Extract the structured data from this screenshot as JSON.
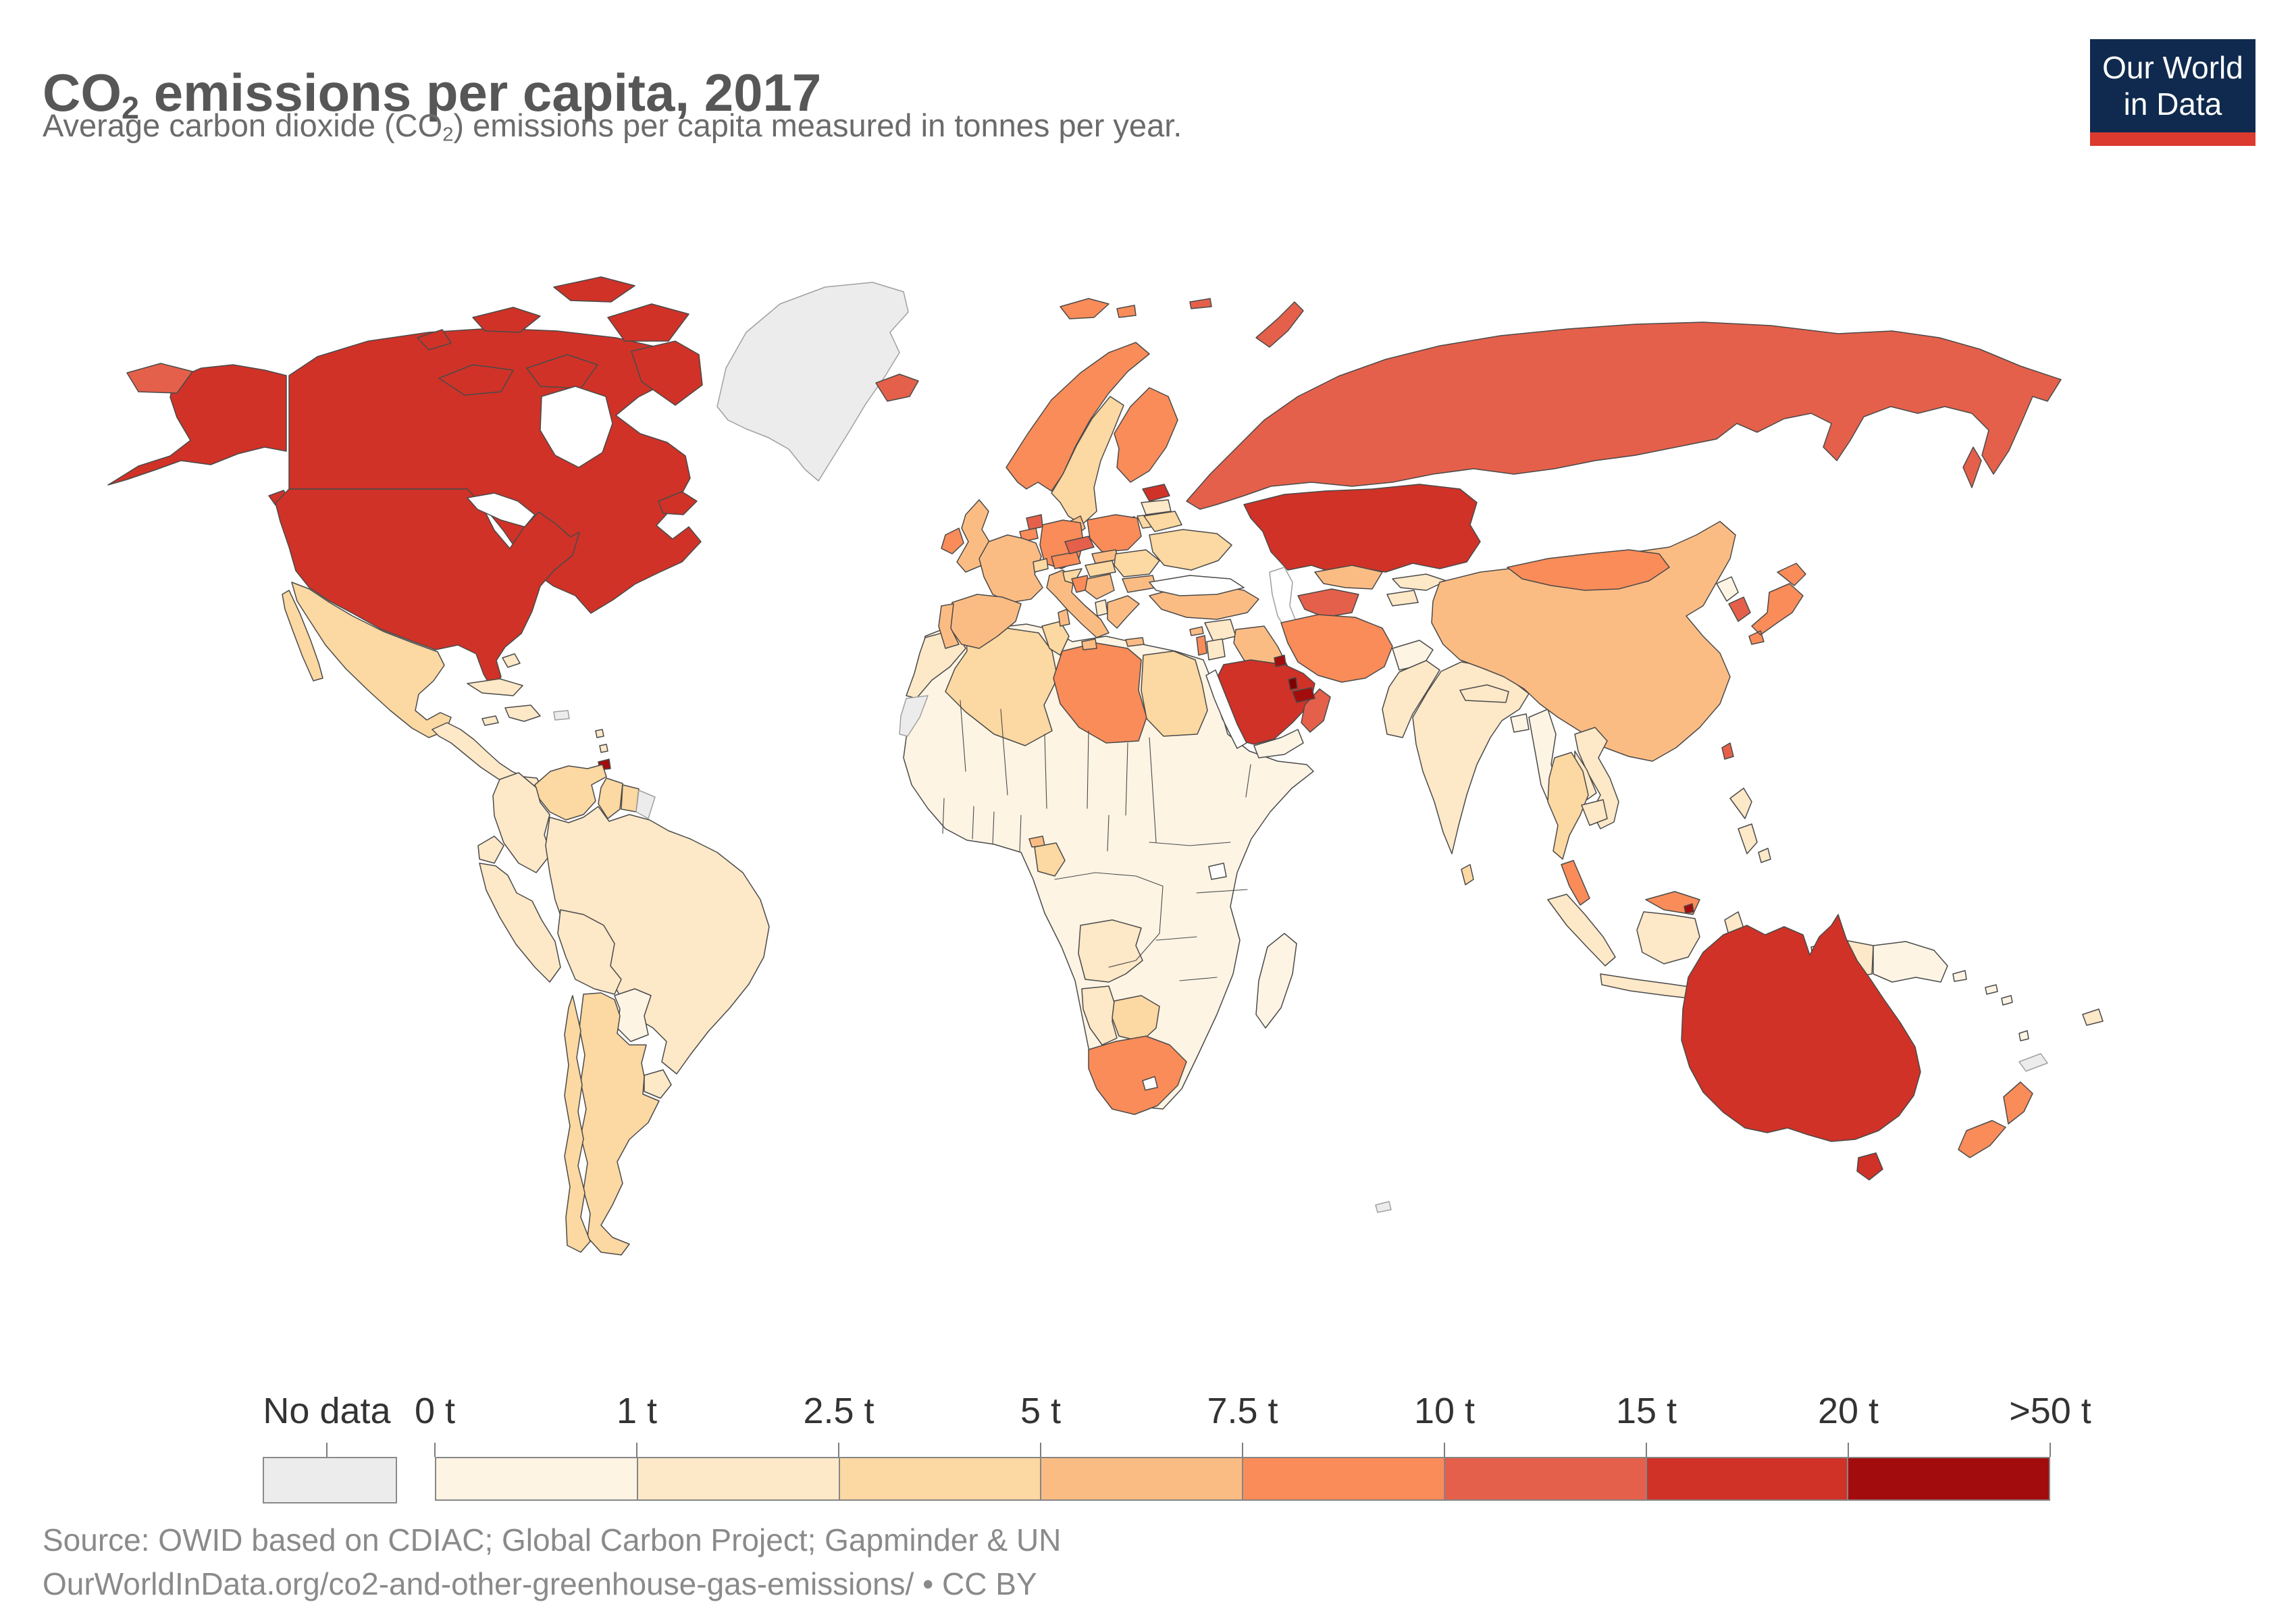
{
  "header": {
    "title_prefix": "CO",
    "title_sub": "2",
    "title_suffix": " emissions per capita, 2017",
    "subtitle_prefix": "Average carbon dioxide (CO",
    "subtitle_sub": "2",
    "subtitle_suffix": ") emissions per capita measured in tonnes per year."
  },
  "logo": {
    "line1": "Our World",
    "line2": "in Data",
    "bg_color": "#0f2a4e",
    "bar_color": "#dc3a2e"
  },
  "legend": {
    "no_data_label": "No data",
    "no_data_color": "#ececec",
    "tick_labels": [
      "0 t",
      "1 t",
      "2.5 t",
      "5 t",
      "7.5 t",
      "10 t",
      "15 t",
      "20 t",
      ">50 t"
    ],
    "bin_colors": [
      "#fdf4e4",
      "#fde8c8",
      "#fcd8a2",
      "#fbbc84",
      "#f98c59",
      "#e5604a",
      "#d03227",
      "#a30c0c"
    ],
    "overflow_color": "#7f0000"
  },
  "footer": {
    "source": "Source: OWID based on CDIAC; Global Carbon Project; Gapminder & UN",
    "link": "OurWorldInData.org/co2-and-other-greenhouse-gas-emissions/ • CC BY"
  },
  "chart_data": {
    "type": "heatmap",
    "subtype": "choropleth-world-map",
    "title": "CO2 emissions per capita, 2017",
    "unit": "tonnes CO2 per capita per year",
    "legend_position": "bottom",
    "bins": [
      "0-1 t",
      "1-2.5 t",
      "2.5-5 t",
      "5-7.5 t",
      "7.5-10 t",
      "10-15 t",
      "15-20 t",
      "20-50 t",
      ">50 t"
    ],
    "regions": {
      "canada": {
        "label": "Canada",
        "bin": 6
      },
      "usa": {
        "label": "United States",
        "bin": 6
      },
      "greenland": {
        "label": "Greenland",
        "bin": "nodata"
      },
      "mexico": {
        "label": "Mexico",
        "bin": 2
      },
      "central-america": {
        "label": "Central America",
        "bin": 1
      },
      "cuba": {
        "label": "Cuba",
        "bin": 1
      },
      "jamaica": {
        "label": "Jamaica",
        "bin": 1
      },
      "hispaniola": {
        "label": "Hispaniola",
        "bin": 1
      },
      "puerto-rico": {
        "label": "Puerto Rico",
        "bin": "nodata"
      },
      "bahamas": {
        "label": "Bahamas",
        "bin": 1
      },
      "lesser-antilles": {
        "label": "Lesser Antilles",
        "bin": 1
      },
      "trinidad": {
        "label": "Trinidad and Tobago",
        "bin": 7
      },
      "venezuela": {
        "label": "Venezuela",
        "bin": 2
      },
      "colombia": {
        "label": "Colombia",
        "bin": 1
      },
      "guyana": {
        "label": "Guyana",
        "bin": 2
      },
      "suriname": {
        "label": "Suriname",
        "bin": 2
      },
      "french-guiana": {
        "label": "French Guiana",
        "bin": "nodata"
      },
      "ecuador": {
        "label": "Ecuador",
        "bin": 1
      },
      "peru": {
        "label": "Peru",
        "bin": 1
      },
      "brazil": {
        "label": "Brazil",
        "bin": 1
      },
      "bolivia": {
        "label": "Bolivia",
        "bin": 1
      },
      "paraguay": {
        "label": "Paraguay",
        "bin": 0
      },
      "uruguay": {
        "label": "Uruguay",
        "bin": 1
      },
      "argentina": {
        "label": "Argentina",
        "bin": 2
      },
      "chile": {
        "label": "Chile",
        "bin": 2
      },
      "iceland": {
        "label": "Iceland",
        "bin": 5
      },
      "uk": {
        "label": "United Kingdom",
        "bin": 3
      },
      "ireland": {
        "label": "Ireland",
        "bin": 4
      },
      "norway": {
        "label": "Norway",
        "bin": 4
      },
      "sweden": {
        "label": "Sweden",
        "bin": 2
      },
      "finland": {
        "label": "Finland",
        "bin": 4
      },
      "denmark": {
        "label": "Denmark",
        "bin": 3
      },
      "estonia": {
        "label": "Estonia",
        "bin": 6
      },
      "latvia": {
        "label": "Latvia",
        "bin": 1
      },
      "lithuania": {
        "label": "Lithuania",
        "bin": 2
      },
      "germany": {
        "label": "Germany",
        "bin": 4
      },
      "netherlands": {
        "label": "Netherlands",
        "bin": 5
      },
      "belgium": {
        "label": "Belgium",
        "bin": 4
      },
      "france": {
        "label": "France",
        "bin": 3
      },
      "spain": {
        "label": "Spain",
        "bin": 3
      },
      "portugal": {
        "label": "Portugal",
        "bin": 3
      },
      "italy": {
        "label": "Italy",
        "bin": 3
      },
      "switzerland": {
        "label": "Switzerland",
        "bin": 2
      },
      "austria": {
        "label": "Austria",
        "bin": 4
      },
      "czechia": {
        "label": "Czechia",
        "bin": 5
      },
      "poland": {
        "label": "Poland",
        "bin": 4
      },
      "slovakia": {
        "label": "Slovakia",
        "bin": 3
      },
      "hungary": {
        "label": "Hungary",
        "bin": 2
      },
      "croatia": {
        "label": "Croatia",
        "bin": 2
      },
      "bosnia": {
        "label": "Bosnia and Herzegovina",
        "bin": 4
      },
      "serbia": {
        "label": "Serbia",
        "bin": 3
      },
      "albania": {
        "label": "Albania",
        "bin": 1
      },
      "romania": {
        "label": "Romania",
        "bin": 2
      },
      "bulgaria": {
        "label": "Bulgaria",
        "bin": 3
      },
      "greece": {
        "label": "Greece",
        "bin": 3
      },
      "belarus": {
        "label": "Belarus",
        "bin": 2
      },
      "ukraine": {
        "label": "Ukraine",
        "bin": 2
      },
      "russia": {
        "label": "Russia",
        "bin": 5
      },
      "svalbard": {
        "label": "Svalbard",
        "bin": 4
      },
      "kazakhstan": {
        "label": "Kazakhstan",
        "bin": 6
      },
      "turkey": {
        "label": "Turkey",
        "bin": 3
      },
      "cyprus": {
        "label": "Cyprus",
        "bin": 3
      },
      "syria": {
        "label": "Syria",
        "bin": 1
      },
      "iraq": {
        "label": "Iraq",
        "bin": 3
      },
      "israel": {
        "label": "Israel",
        "bin": 4
      },
      "jordan": {
        "label": "Jordan",
        "bin": 1
      },
      "saudi-arabia": {
        "label": "Saudi Arabia",
        "bin": 6
      },
      "yemen": {
        "label": "Yemen",
        "bin": 0
      },
      "oman": {
        "label": "Oman",
        "bin": 5
      },
      "uae": {
        "label": "United Arab Emirates",
        "bin": 7
      },
      "qatar": {
        "label": "Qatar",
        "bin": 8
      },
      "kuwait": {
        "label": "Kuwait",
        "bin": 7
      },
      "iran": {
        "label": "Iran",
        "bin": 4
      },
      "turkmenistan": {
        "label": "Turkmenistan",
        "bin": 5
      },
      "uzbekistan": {
        "label": "Uzbekistan",
        "bin": 3
      },
      "kyrgyzstan": {
        "label": "Kyrgyzstan",
        "bin": 1
      },
      "tajikistan": {
        "label": "Tajikistan",
        "bin": 1
      },
      "afghanistan": {
        "label": "Afghanistan",
        "bin": 0
      },
      "pakistan": {
        "label": "Pakistan",
        "bin": 1
      },
      "india": {
        "label": "India",
        "bin": 1
      },
      "sri-lanka": {
        "label": "Sri Lanka",
        "bin": 2
      },
      "nepal": {
        "label": "Nepal",
        "bin": 1
      },
      "bangladesh": {
        "label": "Bangladesh",
        "bin": 0
      },
      "myanmar": {
        "label": "Myanmar",
        "bin": 0
      },
      "china": {
        "label": "China",
        "bin": 3
      },
      "mongolia": {
        "label": "Mongolia",
        "bin": 4
      },
      "north-korea": {
        "label": "North Korea",
        "bin": 0
      },
      "south-korea": {
        "label": "South Korea",
        "bin": 5
      },
      "japan": {
        "label": "Japan",
        "bin": 4
      },
      "taiwan": {
        "label": "Taiwan",
        "bin": 5
      },
      "vietnam": {
        "label": "Vietnam",
        "bin": 1
      },
      "laos": {
        "label": "Laos",
        "bin": 1
      },
      "thailand": {
        "label": "Thailand",
        "bin": 2
      },
      "cambodia": {
        "label": "Cambodia",
        "bin": 1
      },
      "malaysia": {
        "label": "Malaysia",
        "bin": 4
      },
      "brunei": {
        "label": "Brunei",
        "bin": 7
      },
      "indonesia": {
        "label": "Indonesia",
        "bin": 1
      },
      "philippines": {
        "label": "Philippines",
        "bin": 1
      },
      "papua-new-guinea": {
        "label": "Papua New Guinea",
        "bin": 0
      },
      "solomon": {
        "label": "Solomon Islands",
        "bin": 0
      },
      "vanuatu": {
        "label": "Vanuatu",
        "bin": 0
      },
      "fiji": {
        "label": "Fiji",
        "bin": 1
      },
      "new-caledonia": {
        "label": "New Caledonia",
        "bin": "nodata"
      },
      "australia": {
        "label": "Australia",
        "bin": 6
      },
      "new-zealand": {
        "label": "New Zealand",
        "bin": 4
      },
      "kerguelen": {
        "label": "French Southern Territories",
        "bin": "nodata"
      },
      "africa-other": {
        "label": "Sub-Saharan Africa (other)",
        "bin": 0
      },
      "morocco": {
        "label": "Morocco",
        "bin": 1
      },
      "western-sahara": {
        "label": "Western Sahara",
        "bin": "nodata"
      },
      "algeria": {
        "label": "Algeria",
        "bin": 2
      },
      "tunisia": {
        "label": "Tunisia",
        "bin": 2
      },
      "libya": {
        "label": "Libya",
        "bin": 4
      },
      "egypt": {
        "label": "Egypt",
        "bin": 2
      },
      "gabon": {
        "label": "Gabon",
        "bin": 2
      },
      "equatorial-guinea": {
        "label": "Equatorial Guinea",
        "bin": 3
      },
      "angola": {
        "label": "Angola",
        "bin": 1
      },
      "namibia": {
        "label": "Namibia",
        "bin": 1
      },
      "botswana": {
        "label": "Botswana",
        "bin": 2
      },
      "south-africa": {
        "label": "South Africa",
        "bin": 4
      },
      "madagascar": {
        "label": "Madagascar",
        "bin": 0
      }
    }
  }
}
